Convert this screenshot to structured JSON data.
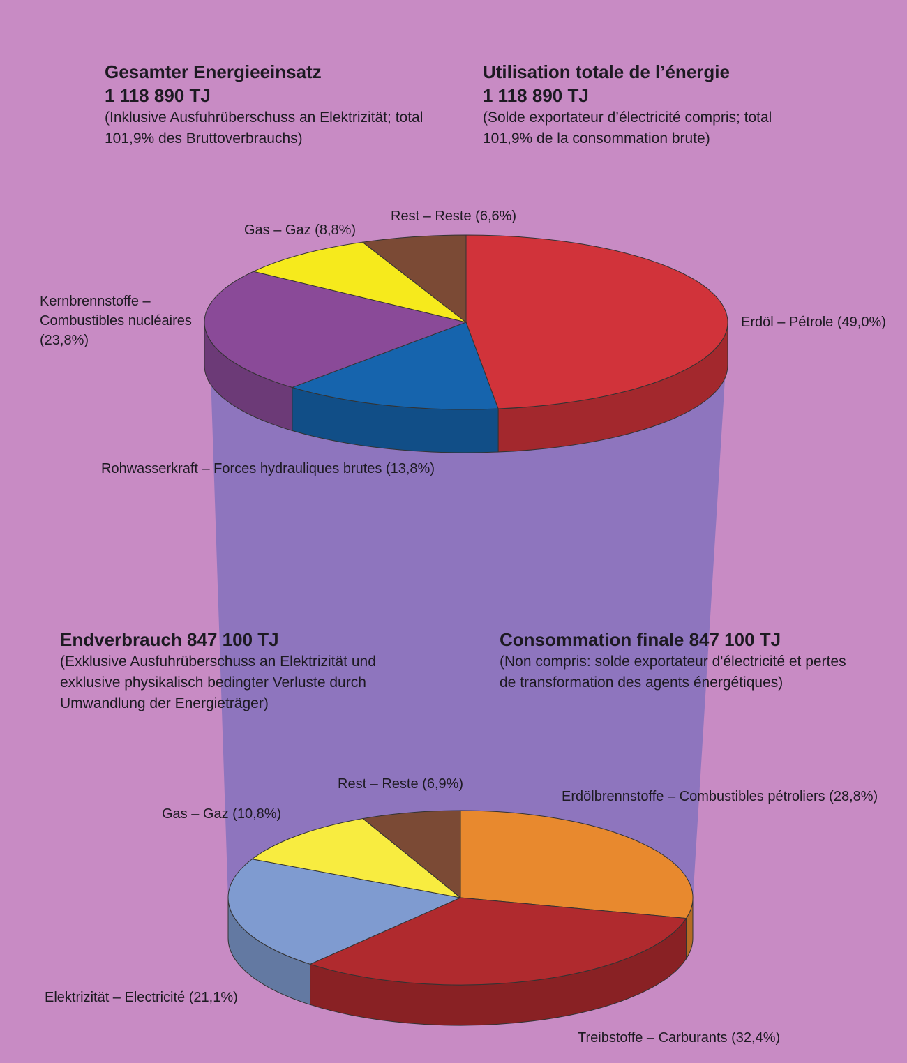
{
  "chart_data": [
    {
      "type": "pie",
      "title": "Gesamter Energieeinsatz",
      "total": "1 118 890 TJ",
      "subtitle": "(Inklusive Ausfuhrüberschuss an Elektrizität; total 101,9% des Bruttoverbrauchs)",
      "title_fr": "Utilisation totale de l’énergie",
      "total_fr": "1 118 890 TJ",
      "subtitle_fr": "(Solde exportateur d’électricité compris; total 101,9% de la consommation brute)",
      "categories": [
        "Erdöl – Pétrole",
        "Rohwasserkraft – Forces hydrauliques brutes",
        "Kernbrennstoffe – Combustibles nucléaires",
        "Gas – Gaz",
        "Rest – Reste"
      ],
      "values": [
        49.0,
        13.8,
        23.8,
        8.8,
        6.6
      ],
      "value_labels": [
        "(49,0%)",
        "(13,8%)",
        "(23,8%)",
        "(8,8%)",
        "(6,6%)"
      ],
      "colors": [
        "#d1333a",
        "#1664ad",
        "#8a4a98",
        "#f6ea1c",
        "#7b4a35"
      ]
    },
    {
      "type": "pie",
      "title": "Endverbrauch 847 100 TJ",
      "subtitle": "(Exklusive Ausfuhrüberschuss an Elektrizität und exklusive physikalisch bedingter Verluste durch Umwandlung der Energieträger)",
      "title_fr": "Consommation finale 847 100 TJ",
      "subtitle_fr": "(Non compris: solde exportateur d'électricité et pertes de transformation des agents énergétiques)",
      "categories": [
        "Erdölbrennstoffe – Combustibles pétroliers",
        "Treibstoffe – Carburants",
        "Elektrizität – Electricité",
        "Gas – Gaz",
        "Rest – Reste"
      ],
      "values": [
        28.8,
        32.4,
        21.1,
        10.8,
        6.9
      ],
      "value_labels": [
        "(28,8%)",
        "(32,4%)",
        "(21,1%)",
        "(10,8%)",
        "(6,9%)"
      ],
      "colors": [
        "#e8892e",
        "#b02a2e",
        "#7f9bd0",
        "#f8ec40",
        "#7b4a35"
      ]
    }
  ]
}
